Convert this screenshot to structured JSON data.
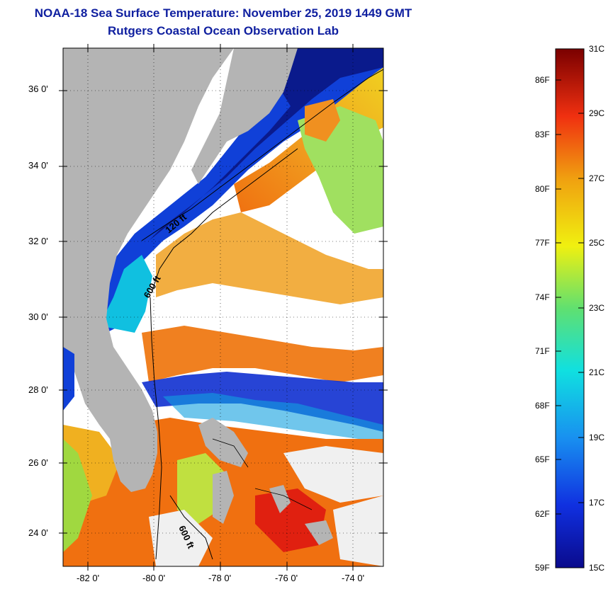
{
  "title": "NOAA-18 Sea Surface Temperature:  November 25, 2019 1449 GMT",
  "subtitle": "Rutgers Coastal Ocean Observation Lab",
  "lat_labels": [
    "36 0'",
    "34 0'",
    "32 0'",
    "30 0'",
    "28 0'",
    "26 0'",
    "24 0'"
  ],
  "lon_labels": [
    "-82 0'",
    "-80 0'",
    "-78 0'",
    "-76 0'",
    "-74 0'"
  ],
  "contour_labels": [
    "120 ft",
    "600 ft",
    "600 ft"
  ],
  "colorbar": {
    "fahrenheit": [
      "86F",
      "83F",
      "80F",
      "77F",
      "74F",
      "71F",
      "68F",
      "65F",
      "62F",
      "59F"
    ],
    "celsius": [
      "31C",
      "29C",
      "27C",
      "25C",
      "23C",
      "21C",
      "19C",
      "17C",
      "15C"
    ]
  },
  "colors": {
    "title": "#1020a0",
    "land": "#b4b4b4",
    "cold": "#0a1a8c",
    "warm": "#f06a10"
  }
}
